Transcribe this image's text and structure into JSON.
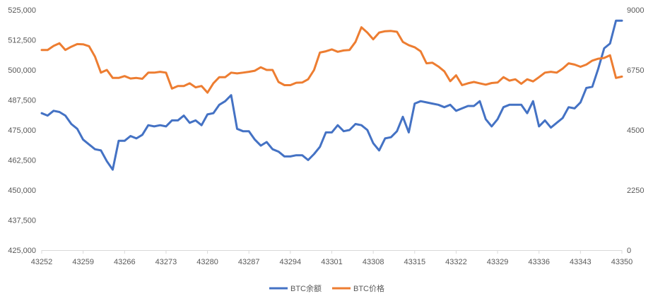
{
  "chart_data": {
    "type": "line",
    "title": "",
    "xlabel": "",
    "ylabel": "",
    "y2label": "",
    "x_ticks": [
      43252,
      43259,
      43266,
      43273,
      43280,
      43287,
      43294,
      43301,
      43308,
      43315,
      43322,
      43329,
      43336,
      43343,
      43350
    ],
    "xlim": [
      43252,
      43350
    ],
    "ylim": [
      425000,
      525000
    ],
    "y_ticks": [
      425000,
      437500,
      450000,
      462500,
      475000,
      487500,
      500000,
      512500,
      525000
    ],
    "y_tick_labels": [
      "425,000",
      "437,500",
      "450,000",
      "462,500",
      "475,000",
      "487,500",
      "500,000",
      "512,500",
      "525,000"
    ],
    "y2lim": [
      0,
      9000
    ],
    "y2_ticks": [
      0,
      2250,
      4500,
      6750,
      9000
    ],
    "y2_tick_labels": [
      "0",
      "2250",
      "4500",
      "6750",
      "9000"
    ],
    "grid": false,
    "legend": "bottom",
    "colors": {
      "balance": "#4472c4",
      "price": "#ed7d31",
      "axis": "#d9d9d9",
      "text": "#595959"
    },
    "series": [
      {
        "name": "BTC余额",
        "axis": "left",
        "x": [
          43252,
          43253,
          43254,
          43255,
          43256,
          43257,
          43258,
          43259,
          43260,
          43261,
          43262,
          43263,
          43264,
          43265,
          43266,
          43267,
          43268,
          43269,
          43270,
          43271,
          43272,
          43273,
          43274,
          43275,
          43276,
          43277,
          43278,
          43279,
          43280,
          43281,
          43282,
          43283,
          43284,
          43285,
          43286,
          43287,
          43288,
          43289,
          43290,
          43291,
          43292,
          43293,
          43294,
          43295,
          43296,
          43297,
          43298,
          43299,
          43300,
          43301,
          43302,
          43303,
          43304,
          43305,
          43306,
          43307,
          43308,
          43309,
          43310,
          43311,
          43312,
          43313,
          43314,
          43315,
          43316,
          43317,
          43318,
          43319,
          43320,
          43321,
          43322,
          43323,
          43324,
          43325,
          43326,
          43327,
          43328,
          43329,
          43330,
          43331,
          43332,
          43333,
          43334,
          43335,
          43336,
          43337,
          43338,
          43339,
          43340,
          43341,
          43342,
          43343,
          43344,
          43345,
          43346,
          43347,
          43348,
          43349,
          43350
        ],
        "values": [
          482000,
          481000,
          483000,
          482500,
          481000,
          477500,
          475500,
          471000,
          469000,
          467000,
          466500,
          462000,
          458500,
          470500,
          470500,
          472500,
          471500,
          473000,
          477000,
          476500,
          477000,
          476500,
          479000,
          479000,
          481000,
          478000,
          479000,
          477000,
          481500,
          482000,
          485500,
          487000,
          489500,
          475500,
          474500,
          474500,
          471000,
          468500,
          470000,
          467000,
          466000,
          464000,
          464000,
          464500,
          464500,
          462500,
          465000,
          468000,
          474000,
          474000,
          477000,
          474500,
          475000,
          477500,
          477000,
          475000,
          469500,
          466500,
          471500,
          472000,
          474500,
          480500,
          474000,
          486000,
          487000,
          486500,
          486000,
          485500,
          484500,
          485500,
          483000,
          484000,
          485000,
          485000,
          487000,
          479500,
          476500,
          479500,
          484500,
          485500,
          485500,
          485500,
          482000,
          487000,
          476500,
          479000,
          476000,
          478000,
          480000,
          484500,
          484000,
          486500,
          492500,
          493000,
          500500,
          509000,
          511000,
          520500,
          520500
        ]
      },
      {
        "name": "BTC价格",
        "axis": "right",
        "x": [
          43252,
          43253,
          43254,
          43255,
          43256,
          43257,
          43258,
          43259,
          43260,
          43261,
          43262,
          43263,
          43264,
          43265,
          43266,
          43267,
          43268,
          43269,
          43270,
          43271,
          43272,
          43273,
          43274,
          43275,
          43276,
          43277,
          43278,
          43279,
          43280,
          43281,
          43282,
          43283,
          43284,
          43285,
          43286,
          43287,
          43288,
          43289,
          43290,
          43291,
          43292,
          43293,
          43294,
          43295,
          43296,
          43297,
          43298,
          43299,
          43300,
          43301,
          43302,
          43303,
          43304,
          43305,
          43306,
          43307,
          43308,
          43309,
          43310,
          43311,
          43312,
          43313,
          43314,
          43315,
          43316,
          43317,
          43318,
          43319,
          43320,
          43321,
          43322,
          43323,
          43324,
          43325,
          43326,
          43327,
          43328,
          43329,
          43330,
          43331,
          43332,
          43333,
          43334,
          43335,
          43336,
          43337,
          43338,
          43339,
          43340,
          43341,
          43342,
          43343,
          43344,
          43345,
          43346,
          43347,
          43348,
          43349,
          43350
        ],
        "values": [
          7500,
          7500,
          7650,
          7750,
          7500,
          7620,
          7720,
          7710,
          7640,
          7250,
          6650,
          6750,
          6450,
          6450,
          6520,
          6430,
          6450,
          6420,
          6650,
          6650,
          6680,
          6650,
          6050,
          6150,
          6150,
          6250,
          6100,
          6150,
          5900,
          6250,
          6480,
          6480,
          6650,
          6620,
          6650,
          6680,
          6720,
          6850,
          6750,
          6750,
          6300,
          6180,
          6180,
          6270,
          6280,
          6400,
          6750,
          7400,
          7450,
          7520,
          7430,
          7480,
          7500,
          7800,
          8350,
          8150,
          7900,
          8150,
          8200,
          8210,
          8180,
          7800,
          7680,
          7600,
          7450,
          7000,
          7020,
          6880,
          6700,
          6330,
          6550,
          6180,
          6250,
          6300,
          6250,
          6200,
          6260,
          6280,
          6480,
          6350,
          6400,
          6230,
          6400,
          6320,
          6480,
          6650,
          6680,
          6650,
          6800,
          7000,
          6950,
          6870,
          6950,
          7100,
          7170,
          7200,
          7300,
          6450,
          6500
        ]
      }
    ]
  }
}
